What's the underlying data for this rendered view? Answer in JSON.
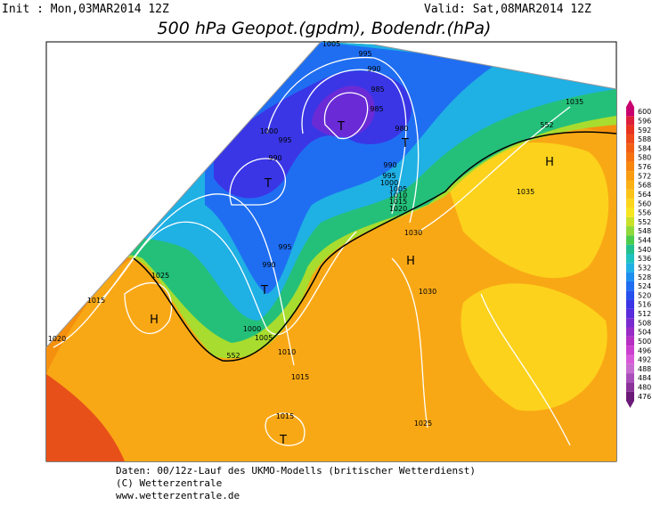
{
  "header": {
    "init": "Init : Mon,03MAR2014 12Z",
    "valid": "Valid: Sat,08MAR2014 12Z",
    "title": "500 hPa Geopot.(gpdm), Bodendr.(hPa)"
  },
  "map": {
    "isobar_labels": [
      1005,
      995,
      990,
      985,
      985,
      980,
      1000,
      995,
      990,
      990,
      995,
      1000,
      1005,
      1010,
      1015,
      1020,
      1035,
      1035,
      1030,
      1030,
      995,
      990,
      1025,
      1015,
      1020,
      1000,
      1005,
      1010,
      1015,
      1015,
      1025
    ],
    "geopotential_labels": [
      552,
      552
    ],
    "centers": [
      "T",
      "T",
      "T",
      "T",
      "T",
      "H",
      "H",
      "H"
    ]
  },
  "colorbar": {
    "ticks": [
      476,
      480,
      484,
      488,
      492,
      496,
      500,
      504,
      508,
      512,
      516,
      520,
      524,
      528,
      532,
      536,
      540,
      544,
      548,
      552,
      556,
      560,
      564,
      568,
      572,
      576,
      580,
      584,
      588,
      592,
      596,
      600
    ],
    "colors": [
      "#6a1a77",
      "#8a3399",
      "#a84fb9",
      "#c86cd0",
      "#d95ad9",
      "#cb40cf",
      "#b630c4",
      "#9a2cc6",
      "#7a2bd0",
      "#5a2ddc",
      "#3a36e6",
      "#2650ee",
      "#1f6ef2",
      "#1e8ff0",
      "#1fb1e6",
      "#1ec2c0",
      "#22c08e",
      "#4ccc4d",
      "#8fd93a",
      "#c8e128",
      "#f7e51f",
      "#fcd61c",
      "#fcc419",
      "#fbb015",
      "#f99c10",
      "#f7870d",
      "#f5720f",
      "#f25f13",
      "#ef4a1a",
      "#e8331f",
      "#dd1f3a",
      "#c8006f"
    ]
  },
  "footer": {
    "line1": "Daten: 00/12z-Lauf des UKMO-Modells (britischer Wetterdienst)",
    "line2": "(C) Wetterzentrale",
    "line3": "www.wetterzentrale.de"
  }
}
